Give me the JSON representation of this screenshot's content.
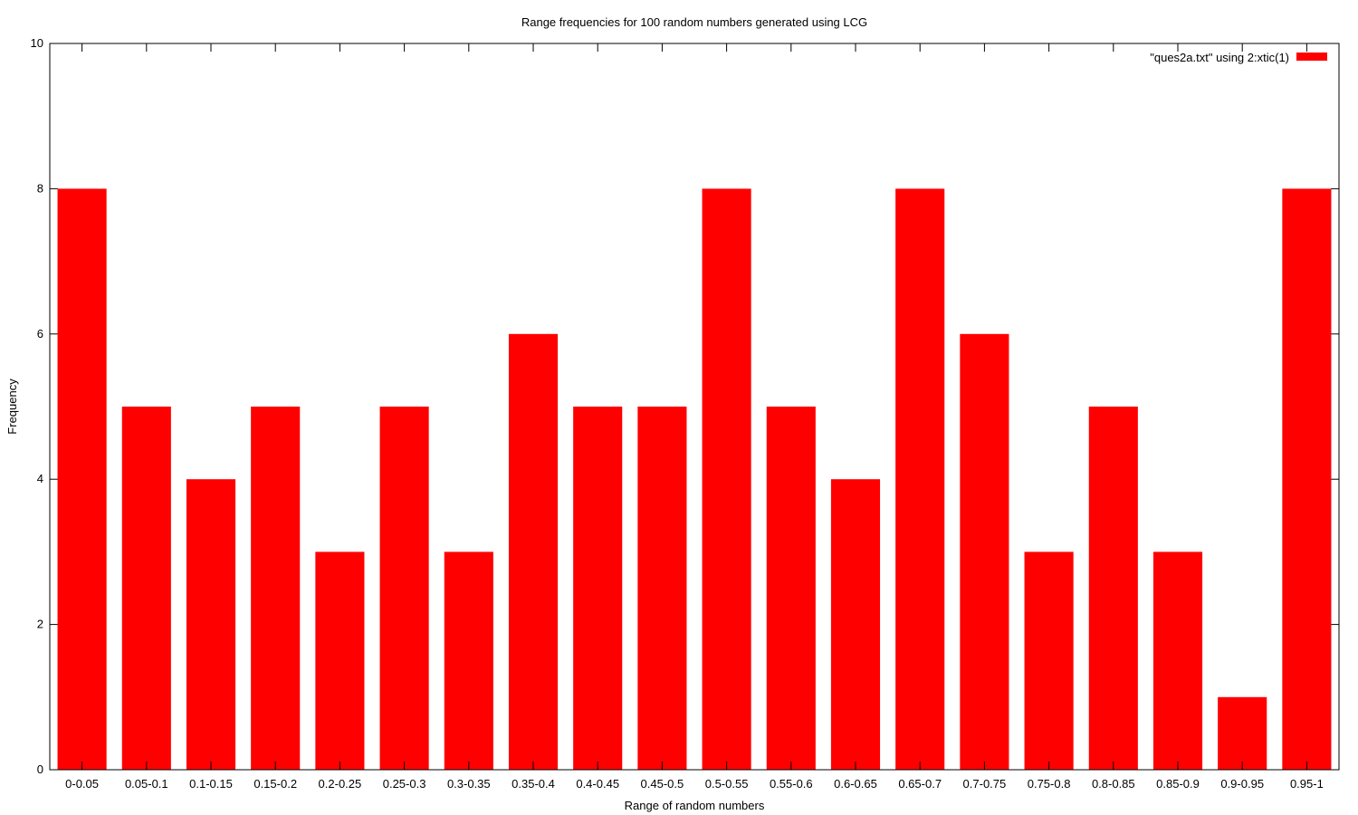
{
  "chart_data": {
    "type": "bar",
    "title": "Range frequencies for 100 random numbers generated using LCG",
    "xlabel": "Range of random numbers",
    "ylabel": "Frequency",
    "ylim": [
      0,
      10
    ],
    "yticks": [
      0,
      2,
      4,
      6,
      8,
      10
    ],
    "categories": [
      "0-0.05",
      "0.05-0.1",
      "0.1-0.15",
      "0.15-0.2",
      "0.2-0.25",
      "0.25-0.3",
      "0.3-0.35",
      "0.35-0.4",
      "0.4-0.45",
      "0.45-0.5",
      "0.5-0.55",
      "0.55-0.6",
      "0.6-0.65",
      "0.65-0.7",
      "0.7-0.75",
      "0.75-0.8",
      "0.8-0.85",
      "0.85-0.9",
      "0.9-0.95",
      "0.95-1"
    ],
    "series": [
      {
        "name": "\"ques2a.txt\" using 2:xtic(1)",
        "color": "#ff0000",
        "values": [
          8,
          5,
          4,
          5,
          3,
          5,
          3,
          6,
          5,
          5,
          8,
          5,
          4,
          8,
          6,
          3,
          5,
          3,
          1,
          8
        ]
      }
    ],
    "legend_position": "top-right",
    "grid": false
  }
}
